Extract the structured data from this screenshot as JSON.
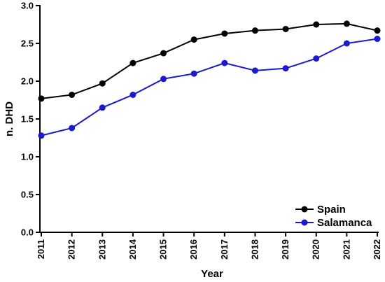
{
  "chart_data": {
    "type": "line",
    "title": "",
    "xlabel": "Year",
    "ylabel": "n. DHD",
    "x": [
      "2011",
      "2012",
      "2013",
      "2014",
      "2015",
      "2016",
      "2017",
      "2018",
      "2019",
      "2020",
      "2021",
      "2022"
    ],
    "ylim": [
      0,
      3.0
    ],
    "yticks": [
      "0.0",
      "0.5",
      "1.0",
      "1.5",
      "2.0",
      "2.5",
      "3.0"
    ],
    "grid": false,
    "legend_position": "bottom-right",
    "series": [
      {
        "name": "Spain",
        "color": "#000000",
        "values": [
          1.77,
          1.82,
          1.97,
          2.24,
          2.37,
          2.55,
          2.63,
          2.67,
          2.69,
          2.75,
          2.76,
          2.67
        ]
      },
      {
        "name": "Salamanca",
        "color": "#1a1acc",
        "values": [
          1.28,
          1.38,
          1.65,
          1.82,
          2.03,
          2.1,
          2.24,
          2.14,
          2.17,
          2.3,
          2.5,
          2.56
        ]
      }
    ]
  }
}
